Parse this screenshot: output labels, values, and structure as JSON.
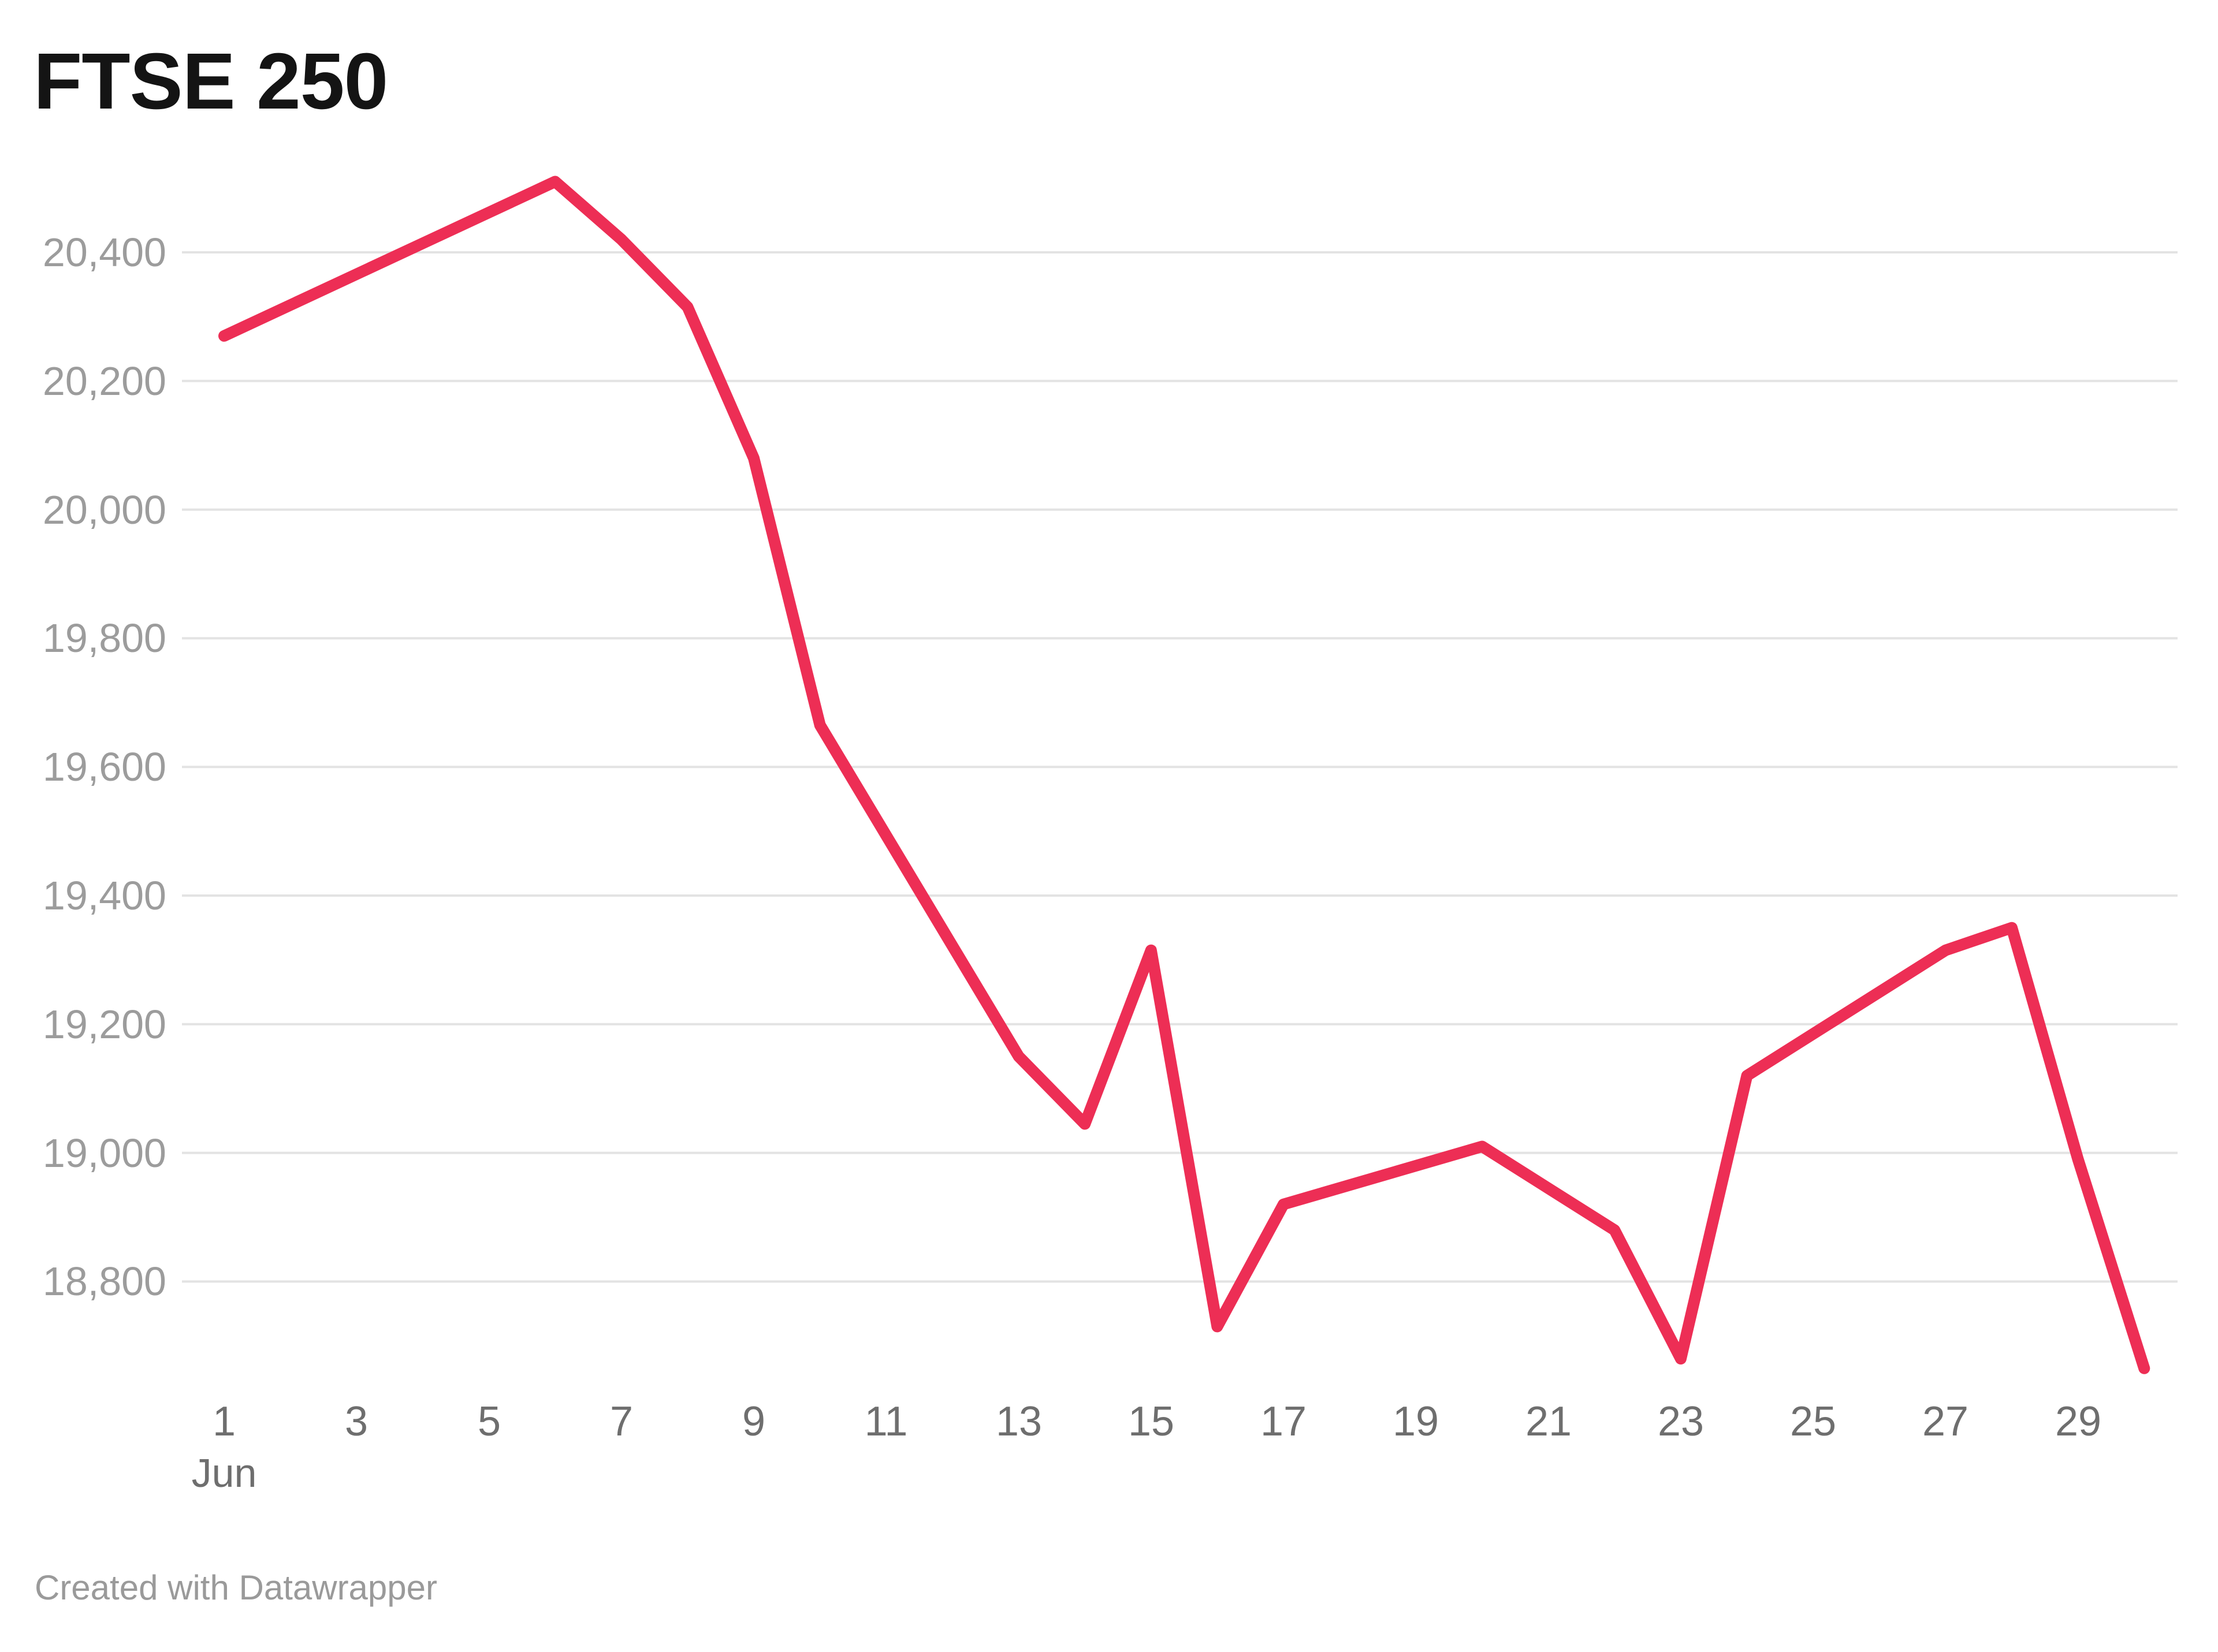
{
  "header": {
    "title": "FTSE 250"
  },
  "footer": {
    "credit": "Created with Datawrapper"
  },
  "colors": {
    "line": "#ED2E55",
    "grid": "#E3E3E3",
    "y_tick_label": "#9C9C9C",
    "x_tick_label": "#6E6E6E",
    "title": "#141414",
    "credit": "#9A9A9A",
    "background": "#FFFFFF"
  },
  "chart_data": {
    "type": "line",
    "title": "FTSE 250",
    "legend": "none",
    "grid": "horizontal-only",
    "x_month_label": "Jun",
    "x_ticks": [
      1,
      3,
      5,
      7,
      9,
      11,
      13,
      15,
      17,
      19,
      21,
      23,
      25,
      27,
      29
    ],
    "y_ticks": [
      20400,
      20200,
      20000,
      19800,
      19600,
      19400,
      19200,
      19000,
      18800
    ],
    "xlim": [
      1,
      30
    ],
    "ylim": [
      18640,
      20530
    ],
    "series": [
      {
        "name": "FTSE 250",
        "x_unit": "day of June",
        "points": [
          {
            "day": 1,
            "value": 20270
          },
          {
            "day": 6,
            "value": 20510
          },
          {
            "day": 7,
            "value": 20420
          },
          {
            "day": 8,
            "value": 20315
          },
          {
            "day": 9,
            "value": 20080
          },
          {
            "day": 10,
            "value": 19665
          },
          {
            "day": 13,
            "value": 19150
          },
          {
            "day": 14,
            "value": 19045
          },
          {
            "day": 15,
            "value": 19315
          },
          {
            "day": 16,
            "value": 18730
          },
          {
            "day": 17,
            "value": 18920
          },
          {
            "day": 20,
            "value": 19010
          },
          {
            "day": 21,
            "value": 18945
          },
          {
            "day": 22,
            "value": 18880
          },
          {
            "day": 23,
            "value": 18680
          },
          {
            "day": 24,
            "value": 19120
          },
          {
            "day": 27,
            "value": 19315
          },
          {
            "day": 28,
            "value": 19350
          },
          {
            "day": 29,
            "value": 18990
          },
          {
            "day": 30,
            "value": 18665
          }
        ]
      }
    ]
  }
}
